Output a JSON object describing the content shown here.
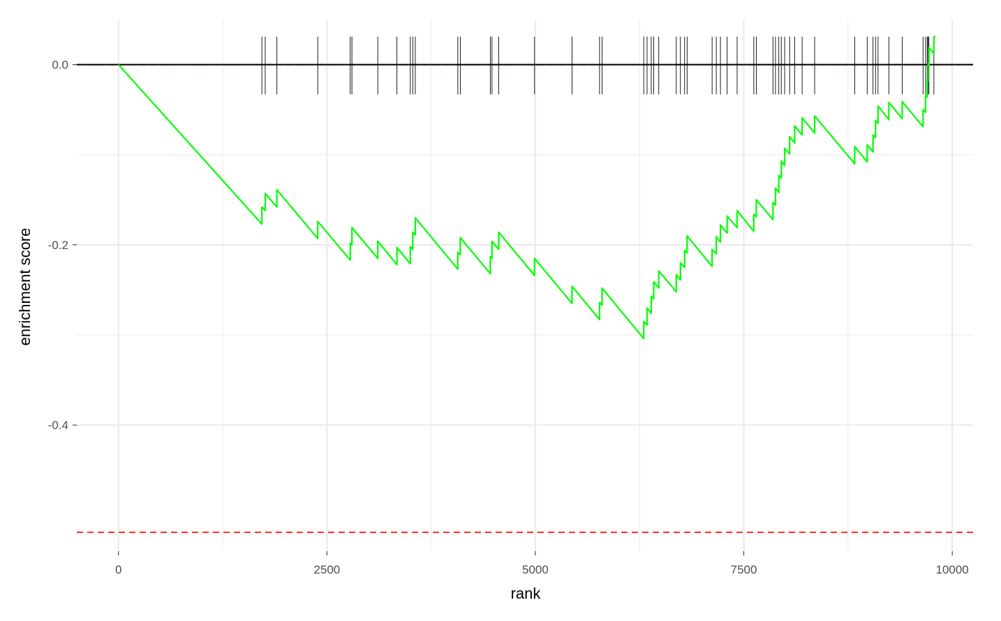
{
  "chart_data": {
    "type": "line",
    "title": "",
    "xlabel": "rank",
    "ylabel": "enrichment score",
    "xlim": [
      -500,
      10250
    ],
    "ylim": [
      -0.54,
      0.05
    ],
    "x_ticks": [
      0,
      2500,
      5000,
      7500,
      10000
    ],
    "x_tick_labels": [
      "0",
      "2500",
      "5000",
      "7500",
      "10000"
    ],
    "y_ticks": [
      0.0,
      -0.2,
      -0.4
    ],
    "y_tick_labels": [
      "0.0",
      "-0.2",
      "-0.4"
    ],
    "grid": true,
    "legend": "none",
    "colors": {
      "curve": "#00ff00",
      "rug": "#000000",
      "zero_line": "#000000",
      "min_line": "#ff2a1a",
      "grid": "#ebebeb"
    },
    "reference_lines": [
      {
        "y": 0.0,
        "style": "solid"
      },
      {
        "y": -0.519,
        "style": "dashed"
      }
    ],
    "hits": [
      1720,
      1760,
      1900,
      2390,
      2780,
      2800,
      3110,
      3340,
      3500,
      3530,
      3560,
      4070,
      4100,
      4460,
      4480,
      4560,
      4990,
      5440,
      5770,
      5800,
      6300,
      6340,
      6390,
      6420,
      6480,
      6690,
      6740,
      6790,
      6820,
      7120,
      7170,
      7220,
      7300,
      7420,
      7620,
      7650,
      7850,
      7880,
      7920,
      7950,
      7990,
      8050,
      8110,
      8200,
      8350,
      8830,
      8980,
      9050,
      9080,
      9110,
      9240,
      9400,
      9650,
      9680,
      9700,
      9710,
      9720,
      9780
    ],
    "series": [
      {
        "x": [
          0,
          1720,
          1720,
          1760,
          1760,
          1900,
          1900,
          2390,
          2390,
          2780,
          2780,
          2800,
          2800,
          3110,
          3110,
          3340,
          3340,
          3500,
          3500,
          3530,
          3530,
          3560,
          3560,
          4070,
          4070,
          4100,
          4100,
          4460,
          4460,
          4480,
          4480,
          4560,
          4560,
          4990,
          4990,
          5440,
          5440,
          5770,
          5770,
          5800,
          5800,
          6300,
          6300,
          6340,
          6340,
          6390,
          6390,
          6420,
          6420,
          6480,
          6480,
          6690,
          6690,
          6740,
          6740,
          6790,
          6790,
          6820,
          6820,
          7120,
          7120,
          7170,
          7170,
          7220,
          7220,
          7300,
          7300,
          7420,
          7420,
          7620,
          7620,
          7650,
          7650,
          7850,
          7850,
          7880,
          7880,
          7920,
          7920,
          7950,
          7950,
          7990,
          7990,
          8050,
          8050,
          8110,
          8110,
          8200,
          8200,
          8350,
          8350,
          8830,
          8830,
          8980,
          8980,
          9050,
          9050,
          9080,
          9080,
          9110,
          9110,
          9240,
          9240,
          9400,
          9400,
          9650,
          9650,
          9680,
          9680,
          9700,
          9700,
          9710,
          9710,
          9720,
          9720,
          9780,
          9780,
          9800
        ],
        "y": [
          0.0,
          -0.177,
          -0.158,
          -0.162,
          -0.143,
          -0.158,
          -0.139,
          -0.193,
          -0.174,
          -0.217,
          -0.198,
          -0.2,
          -0.181,
          -0.215,
          -0.196,
          -0.222,
          -0.203,
          -0.221,
          -0.202,
          -0.205,
          -0.186,
          -0.189,
          -0.17,
          -0.227,
          -0.208,
          -0.211,
          -0.192,
          -0.232,
          -0.213,
          -0.215,
          -0.196,
          -0.205,
          -0.186,
          -0.234,
          -0.215,
          -0.265,
          -0.246,
          -0.283,
          -0.264,
          -0.267,
          -0.248,
          -0.304,
          -0.285,
          -0.289,
          -0.27,
          -0.276,
          -0.257,
          -0.26,
          -0.241,
          -0.248,
          -0.229,
          -0.252,
          -0.233,
          -0.239,
          -0.22,
          -0.225,
          -0.206,
          -0.209,
          -0.19,
          -0.224,
          -0.205,
          -0.21,
          -0.191,
          -0.197,
          -0.178,
          -0.187,
          -0.168,
          -0.181,
          -0.162,
          -0.185,
          -0.166,
          -0.169,
          -0.15,
          -0.172,
          -0.153,
          -0.156,
          -0.137,
          -0.142,
          -0.123,
          -0.126,
          -0.107,
          -0.112,
          -0.093,
          -0.099,
          -0.08,
          -0.087,
          -0.068,
          -0.078,
          -0.059,
          -0.076,
          -0.057,
          -0.11,
          -0.091,
          -0.108,
          -0.089,
          -0.097,
          -0.078,
          -0.081,
          -0.062,
          -0.065,
          -0.046,
          -0.061,
          -0.042,
          -0.06,
          -0.041,
          -0.069,
          -0.05,
          -0.053,
          -0.034,
          -0.036,
          -0.017,
          -0.018,
          0.001,
          0.0,
          0.019,
          0.012,
          0.031,
          0.031
        ]
      }
    ]
  }
}
